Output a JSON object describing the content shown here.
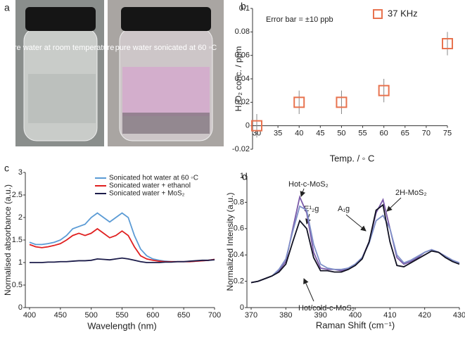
{
  "panel_labels": [
    "a",
    "b",
    "c",
    "d"
  ],
  "photo": {
    "captions": [
      "pure water at room temperature",
      "pure water sonicated at 60 ◦C"
    ]
  },
  "chart_data": [
    {
      "type": "scatter",
      "x": [
        30,
        40,
        50,
        60,
        75
      ],
      "series": [
        {
          "name": "37 KHz",
          "color": "#e8734f",
          "values": [
            0,
            0.02,
            0.02,
            0.03,
            0.07
          ],
          "errors": [
            0.01,
            0.01,
            0.01,
            0.01,
            0.01
          ]
        }
      ],
      "xlabel": "Temp. / ◦ C",
      "ylabel": "H₂O₂ conc. / ppm",
      "annotations": [
        "Error bar = ±10 ppb"
      ],
      "xlim": [
        30,
        75
      ],
      "xticks": [
        30,
        35,
        40,
        45,
        50,
        55,
        60,
        65,
        70,
        75
      ],
      "ylim": [
        -0.02,
        0.1
      ],
      "yticks": [
        -0.02,
        0,
        0.02,
        0.04,
        0.06,
        0.08,
        0.1
      ],
      "grid": false,
      "legend": "upper right"
    },
    {
      "type": "line",
      "x": [
        400,
        410,
        420,
        430,
        440,
        450,
        460,
        470,
        480,
        490,
        500,
        510,
        520,
        530,
        540,
        550,
        560,
        570,
        580,
        590,
        600,
        610,
        620,
        630,
        640,
        650,
        660,
        670,
        680,
        690,
        700
      ],
      "series": [
        {
          "name": "Sonicated hot water at 60 ◦C",
          "color": "#5b9bd5",
          "values": [
            1.45,
            1.4,
            1.4,
            1.42,
            1.45,
            1.5,
            1.6,
            1.75,
            1.8,
            1.85,
            2.0,
            2.1,
            2.0,
            1.9,
            2.0,
            2.1,
            2.0,
            1.6,
            1.3,
            1.15,
            1.08,
            1.05,
            1.03,
            1.02,
            1.02,
            1.02,
            1.02,
            1.03,
            1.04,
            1.05,
            1.07
          ]
        },
        {
          "name": "Sonicated water + ethanol",
          "color": "#e02020",
          "values": [
            1.4,
            1.35,
            1.33,
            1.35,
            1.38,
            1.42,
            1.5,
            1.6,
            1.65,
            1.6,
            1.65,
            1.75,
            1.65,
            1.55,
            1.6,
            1.7,
            1.6,
            1.35,
            1.15,
            1.08,
            1.05,
            1.03,
            1.02,
            1.02,
            1.02,
            1.02,
            1.02,
            1.03,
            1.04,
            1.05,
            1.07
          ]
        },
        {
          "name": "Sonicated water + MoS₂",
          "color": "#1c1c4a",
          "values": [
            1.0,
            1.0,
            1.0,
            1.01,
            1.01,
            1.02,
            1.02,
            1.03,
            1.04,
            1.04,
            1.05,
            1.08,
            1.07,
            1.06,
            1.08,
            1.1,
            1.08,
            1.05,
            1.02,
            1.0,
            1.0,
            1.0,
            1.01,
            1.01,
            1.02,
            1.02,
            1.03,
            1.04,
            1.05,
            1.05,
            1.06
          ]
        }
      ],
      "xlabel": "Wavelength (nm)",
      "ylabel": "Normalised absorbance (a.u.)",
      "xlim": [
        400,
        700
      ],
      "xticks": [
        400,
        450,
        500,
        550,
        600,
        650,
        700
      ],
      "ylim": [
        0,
        3
      ],
      "yticks": [
        0,
        0.5,
        1,
        1.5,
        2,
        2.5,
        3
      ],
      "grid": false,
      "legend": "upper right"
    },
    {
      "type": "line",
      "x": [
        370,
        372,
        374,
        376,
        378,
        380,
        382,
        384,
        386,
        388,
        390,
        392,
        394,
        396,
        398,
        400,
        402,
        404,
        406,
        408,
        410,
        412,
        414,
        416,
        418,
        420,
        422,
        424,
        426,
        428,
        430
      ],
      "series": [
        {
          "color": "#7a5aa8",
          "values": [
            0.19,
            0.2,
            0.22,
            0.24,
            0.28,
            0.35,
            0.6,
            0.84,
            0.72,
            0.42,
            0.3,
            0.29,
            0.29,
            0.28,
            0.3,
            0.33,
            0.38,
            0.5,
            0.72,
            0.82,
            0.6,
            0.38,
            0.33,
            0.35,
            0.38,
            0.42,
            0.44,
            0.42,
            0.39,
            0.36,
            0.34
          ]
        },
        {
          "color": "#7f90c8",
          "values": [
            0.19,
            0.2,
            0.22,
            0.24,
            0.29,
            0.37,
            0.58,
            0.77,
            0.74,
            0.48,
            0.33,
            0.3,
            0.29,
            0.29,
            0.3,
            0.33,
            0.38,
            0.49,
            0.66,
            0.7,
            0.6,
            0.4,
            0.34,
            0.36,
            0.39,
            0.42,
            0.44,
            0.42,
            0.39,
            0.36,
            0.34
          ]
        },
        {
          "color": "#111122",
          "values": [
            0.19,
            0.2,
            0.22,
            0.24,
            0.27,
            0.33,
            0.5,
            0.66,
            0.6,
            0.38,
            0.28,
            0.28,
            0.27,
            0.27,
            0.29,
            0.32,
            0.37,
            0.5,
            0.74,
            0.78,
            0.5,
            0.32,
            0.31,
            0.34,
            0.37,
            0.4,
            0.43,
            0.42,
            0.38,
            0.35,
            0.33
          ]
        }
      ],
      "xlabel": "Raman Shift (cm⁻¹)",
      "ylabel": "Normalized Intensity (a.u.)",
      "annotations": [
        "Hot-c-MoS₂",
        "E¹₂g",
        "A₁g",
        "2H-MoS₂",
        "Hot/cold-c-MoS₂"
      ],
      "xlim": [
        370,
        430
      ],
      "xticks": [
        370,
        380,
        390,
        400,
        410,
        420,
        430
      ],
      "ylim": [
        0,
        1
      ],
      "yticks": [
        0,
        0.2,
        0.4,
        0.6,
        0.8,
        1
      ],
      "grid": false
    }
  ]
}
